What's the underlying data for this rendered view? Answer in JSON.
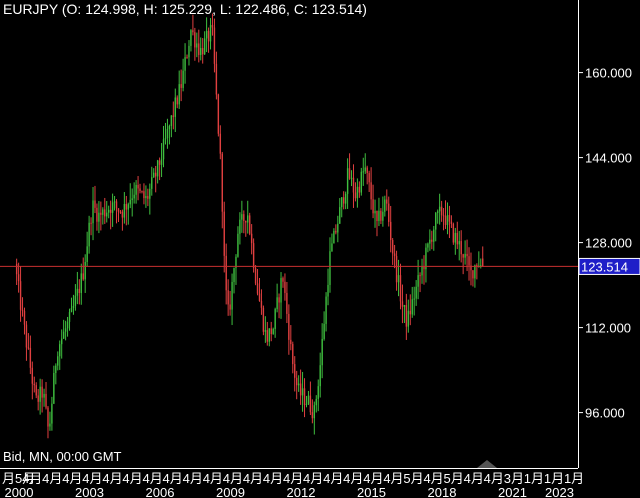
{
  "header": {
    "title": "EURJPY (O: 124.998, H: 125.229, L: 122.486, C: 123.514)"
  },
  "footer": {
    "price_info": "Bid, MN, 00:00 GMT"
  },
  "colors": {
    "background": "#000000",
    "bull": "#3fbf3f",
    "bear": "#e04040",
    "axis": "#ffffff",
    "current_line": "#c83030",
    "current_label_bg": "#1e1ec8"
  },
  "chart_data": {
    "type": "candlestick",
    "symbol": "EURJPY",
    "timeframe": "MN",
    "ohlc_current": {
      "open": 124.998,
      "high": 125.229,
      "low": 122.486,
      "close": 123.514
    },
    "current_price_label": "123.514",
    "current_price": 123.514,
    "y_ticks": [
      {
        "value": 96,
        "label": "96.000"
      },
      {
        "value": 112,
        "label": "112.000"
      },
      {
        "value": 128,
        "label": "128.000"
      },
      {
        "value": 144,
        "label": "144.000"
      },
      {
        "value": 160,
        "label": "160.000"
      }
    ],
    "x_sublabels": [
      "月5月",
      "4月",
      "4月",
      "4月",
      "4月",
      "4月",
      "4月",
      "4月",
      "4月",
      "4月",
      "4月",
      "4月",
      "4月",
      "4月",
      "4月",
      "4月",
      "4月",
      "4月",
      "4月",
      "4月",
      "5月",
      "4月",
      "5月",
      "4月",
      "4月",
      "3月",
      "1月",
      "1月",
      "1月"
    ],
    "x_year_labels": [
      {
        "year": 2000,
        "label": "2000"
      },
      {
        "year": 2003,
        "label": "2003"
      },
      {
        "year": 2006,
        "label": "2006"
      },
      {
        "year": 2009,
        "label": "2009"
      },
      {
        "year": 2012,
        "label": "2012"
      },
      {
        "year": 2015,
        "label": "2015"
      },
      {
        "year": 2018,
        "label": "2018"
      },
      {
        "year": 2021,
        "label": "2021"
      },
      {
        "year": 2023,
        "label": "2023"
      }
    ],
    "path": [
      [
        1999.9,
        124
      ],
      [
        2000.3,
        112
      ],
      [
        2000.8,
        98
      ],
      [
        2001.1,
        100
      ],
      [
        2001.35,
        92
      ],
      [
        2001.7,
        108
      ],
      [
        2002.3,
        114
      ],
      [
        2002.8,
        122
      ],
      [
        2003.2,
        135
      ],
      [
        2003.5,
        133
      ],
      [
        2004.0,
        135
      ],
      [
        2004.5,
        134
      ],
      [
        2005.0,
        138
      ],
      [
        2005.5,
        136
      ],
      [
        2006.0,
        142
      ],
      [
        2006.5,
        150
      ],
      [
        2007.0,
        158
      ],
      [
        2007.4,
        168
      ],
      [
        2007.8,
        164
      ],
      [
        2008.3,
        168
      ],
      [
        2008.7,
        140
      ],
      [
        2008.85,
        120
      ],
      [
        2009.0,
        114
      ],
      [
        2009.4,
        130
      ],
      [
        2009.8,
        134
      ],
      [
        2010.2,
        120
      ],
      [
        2010.6,
        110
      ],
      [
        2010.9,
        112
      ],
      [
        2011.3,
        122
      ],
      [
        2011.7,
        106
      ],
      [
        2011.95,
        100
      ],
      [
        2012.4,
        98
      ],
      [
        2012.65,
        96
      ],
      [
        2012.9,
        105
      ],
      [
        2013.3,
        125
      ],
      [
        2013.8,
        135
      ],
      [
        2014.1,
        141
      ],
      [
        2014.4,
        137
      ],
      [
        2014.8,
        142
      ],
      [
        2015.0,
        138
      ],
      [
        2015.3,
        131
      ],
      [
        2015.7,
        136
      ],
      [
        2016.0,
        126
      ],
      [
        2016.4,
        116
      ],
      [
        2016.6,
        113
      ],
      [
        2016.9,
        118
      ],
      [
        2017.3,
        124
      ],
      [
        2017.8,
        132
      ],
      [
        2018.1,
        134
      ],
      [
        2018.5,
        130
      ],
      [
        2019.0,
        126
      ],
      [
        2019.3,
        122
      ],
      [
        2019.6,
        124.9
      ],
      [
        2019.75,
        123.514
      ]
    ]
  }
}
